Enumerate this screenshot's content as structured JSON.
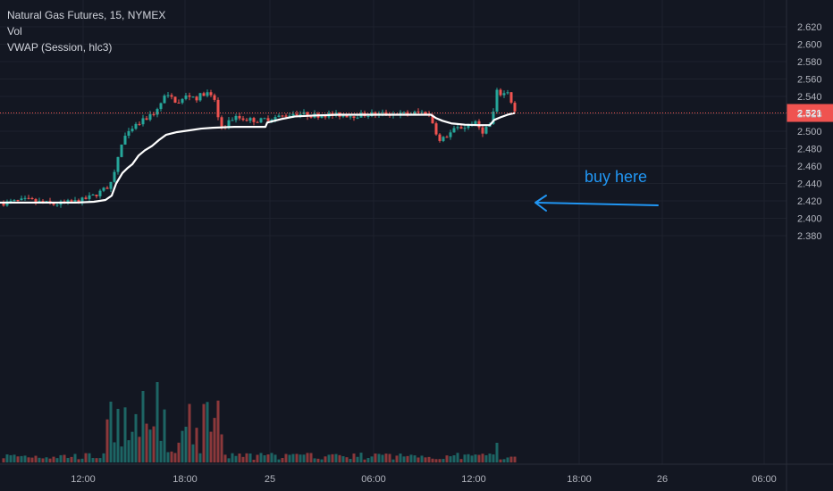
{
  "legend": {
    "symbol_line": "Natural Gas Futures, 15, NYMEX",
    "vol_label": "Vol",
    "vwap_label": "VWAP (Session, hlc3)"
  },
  "annotation": {
    "text": "buy here",
    "color": "#2196f3"
  },
  "colors": {
    "background": "#131722",
    "grid": "#1e222d",
    "up": "#26a69a",
    "down": "#ef5350",
    "vwap": "#ffffff",
    "price_tag": "#ef5350",
    "arrow": "#2196f3"
  },
  "chart_data": {
    "type": "candlestick",
    "title": "Natural Gas Futures, 15, NYMEX",
    "ylim": [
      2.37,
      2.63
    ],
    "y_ticks": [
      "2.620",
      "2.600",
      "2.580",
      "2.560",
      "2.540",
      "2.520",
      "2.500",
      "2.480",
      "2.460",
      "2.440",
      "2.420",
      "2.400",
      "2.380"
    ],
    "x_ticks": [
      "12:00",
      "18:00",
      "25",
      "06:00",
      "12:00",
      "18:00",
      "26",
      "06:00"
    ],
    "last_price": "2.521",
    "series": [
      {
        "name": "Vol"
      },
      {
        "name": "VWAP (Session, hlc3)"
      }
    ],
    "vwap_points": [
      [
        0,
        2.418
      ],
      [
        35,
        2.418
      ],
      [
        60,
        2.418
      ],
      [
        85,
        2.418
      ],
      [
        105,
        2.419
      ],
      [
        118,
        2.421
      ],
      [
        125,
        2.426
      ],
      [
        130,
        2.44
      ],
      [
        137,
        2.452
      ],
      [
        143,
        2.458
      ],
      [
        148,
        2.462
      ],
      [
        155,
        2.472
      ],
      [
        162,
        2.478
      ],
      [
        170,
        2.483
      ],
      [
        178,
        2.49
      ],
      [
        186,
        2.496
      ],
      [
        198,
        2.499
      ],
      [
        212,
        2.501
      ],
      [
        225,
        2.503
      ],
      [
        238,
        2.504
      ],
      [
        250,
        2.5045
      ],
      [
        262,
        2.505
      ],
      [
        280,
        2.505
      ],
      [
        297,
        2.505
      ],
      [
        299,
        2.51
      ],
      [
        303,
        2.511
      ],
      [
        315,
        2.514
      ],
      [
        330,
        2.517
      ],
      [
        350,
        2.518
      ],
      [
        380,
        2.519
      ],
      [
        420,
        2.519
      ],
      [
        460,
        2.519
      ],
      [
        482,
        2.519
      ],
      [
        488,
        2.515
      ],
      [
        495,
        2.512
      ],
      [
        505,
        2.509
      ],
      [
        520,
        2.5075
      ],
      [
        535,
        2.507
      ],
      [
        548,
        2.507
      ],
      [
        553,
        2.513
      ],
      [
        560,
        2.516
      ],
      [
        568,
        2.519
      ],
      [
        576,
        2.521
      ]
    ]
  }
}
